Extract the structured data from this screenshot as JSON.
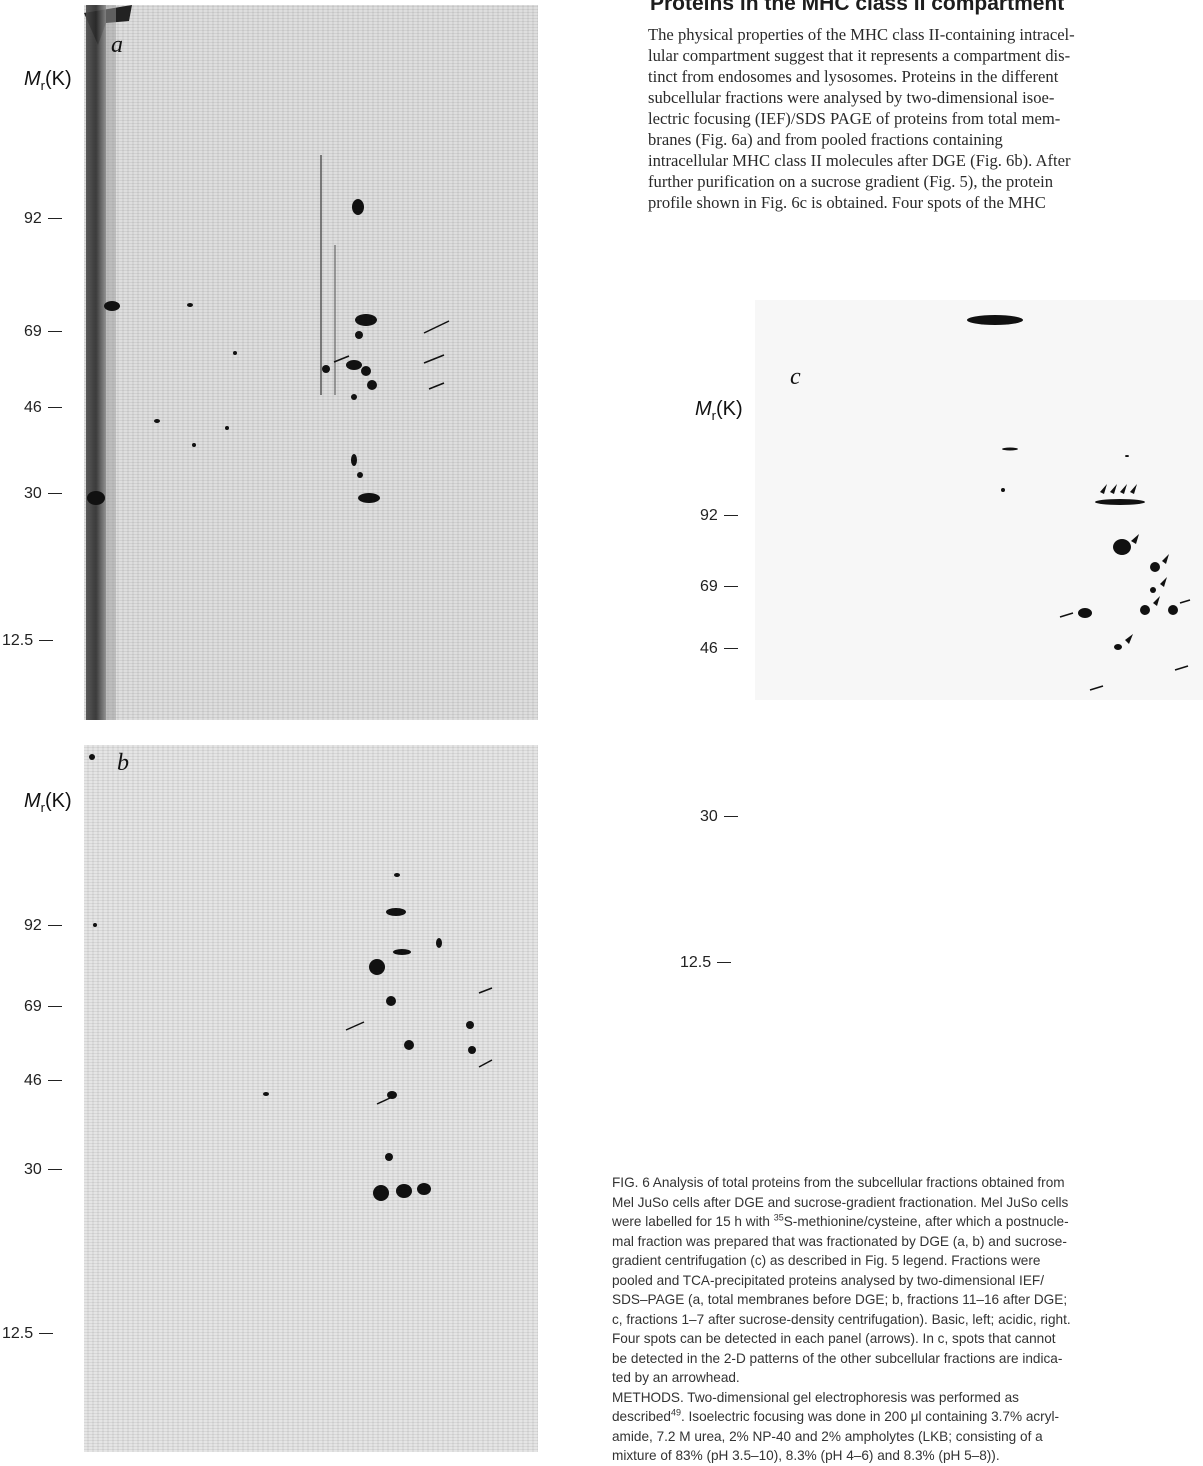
{
  "heading": "Proteins in the MHC class II compartment",
  "body_lines": [
    "The physical properties of the MHC class II-containing intracel-",
    "lular compartment suggest that it represents a compartment dis-",
    "tinct from endosomes and lysosomes. Proteins in the different",
    "subcellular fractions were analysed by two-dimensional isoe-",
    "lectric focusing (IEF)/SDS PAGE of proteins from total mem-",
    "branes (Fig. 6a) and from pooled fractions containing",
    "intracellular MHC class II molecules after DGE (Fig. 6b). After",
    "further purification on a sucrose gradient (Fig. 5), the protein",
    "profile shown in Fig. 6c is obtained. Four spots of the MHC"
  ],
  "panels": {
    "a": {
      "letter": "a",
      "axis_label": "M",
      "axis_sub": "r",
      "axis_unit": "(K)",
      "markers": [
        "92",
        "69",
        "46",
        "30",
        "12.5"
      ]
    },
    "b": {
      "letter": "b",
      "axis_label": "M",
      "axis_sub": "r",
      "axis_unit": "(K)",
      "markers": [
        "92",
        "69",
        "46",
        "30",
        "12.5"
      ]
    },
    "c": {
      "letter": "c",
      "axis_label": "M",
      "axis_sub": "r",
      "axis_unit": "(K)",
      "markers": [
        "92",
        "69",
        "46",
        "30",
        "12.5"
      ]
    }
  },
  "caption_lines": [
    {
      "pre": "FIG. 6 Analysis of total proteins from the subcellular fractions obtained from",
      "sup": "",
      "post": ""
    },
    {
      "pre": "Mel JuSo cells after DGE and sucrose-gradient fractionation. Mel JuSo cells",
      "sup": "",
      "post": ""
    },
    {
      "pre": "were labelled for 15 h with ",
      "sup": "35",
      "post": "S-methionine/cysteine, after which a postnucle-"
    },
    {
      "pre": "mal fraction was prepared that was fractionated by DGE (a, b) and sucrose-",
      "sup": "",
      "post": ""
    },
    {
      "pre": "gradient centrifugation (c) as described in Fig. 5 legend. Fractions were",
      "sup": "",
      "post": ""
    },
    {
      "pre": "pooled and TCA-precipitated proteins analysed by two-dimensional IEF/",
      "sup": "",
      "post": ""
    },
    {
      "pre": "SDS–PAGE (a, total membranes before DGE; b, fractions 11–16 after DGE;",
      "sup": "",
      "post": ""
    },
    {
      "pre": "c, fractions 1–7 after sucrose-density centrifugation). Basic, left; acidic, right.",
      "sup": "",
      "post": ""
    },
    {
      "pre": "Four spots can be detected in each panel  (arrows). In c, spots that cannot",
      "sup": "",
      "post": ""
    },
    {
      "pre": "be detected in the 2-D patterns of the other subcellular fractions are indica-",
      "sup": "",
      "post": ""
    },
    {
      "pre": "ted by an arrowhead.",
      "sup": "",
      "post": ""
    },
    {
      "pre": "METHODS.  Two-dimensional  gel  electrophoresis  was  performed  as",
      "sup": "",
      "post": ""
    },
    {
      "pre": "described",
      "sup": "49",
      "post": ". Isoelectric focusing was done in 200 μl containing 3.7% acryl-"
    },
    {
      "pre": "amide, 7.2 M urea, 2% NP-40 and 2% ampholytes (LKB; consisting of a",
      "sup": "",
      "post": ""
    },
    {
      "pre": "mixture of 83% (pH 3.5–10), 8.3% (pH 4–6) and 8.3% (pH 5–8)).",
      "sup": "",
      "post": ""
    }
  ]
}
